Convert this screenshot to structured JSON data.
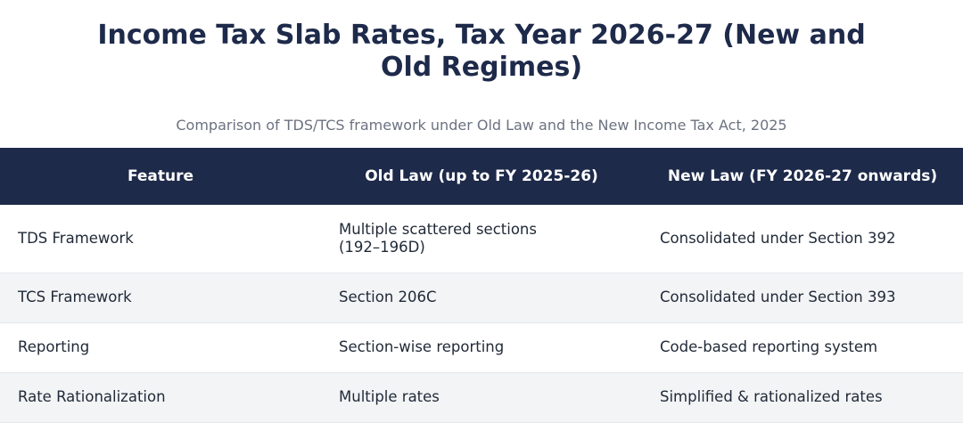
{
  "title": "Income Tax Slab Rates, Tax Year 2026-27 (New and Old Regimes)",
  "subtitle": "Comparison of TDS/TCS framework under Old Law and the New Income Tax Act, 2025",
  "table": {
    "headers": [
      "Feature",
      "Old Law (up to FY 2025-26)",
      "New Law (FY 2026-27 onwards)"
    ],
    "rows": [
      [
        "TDS Framework",
        "Multiple scattered sections (192–196D)",
        "Consolidated under Section 392"
      ],
      [
        "TCS Framework",
        "Section 206C",
        "Consolidated under Section 393"
      ],
      [
        "Reporting",
        "Section-wise reporting",
        "Code-based reporting system"
      ],
      [
        "Rate Rationalization",
        "Multiple rates",
        "Simplified & rationalized rates"
      ]
    ]
  },
  "colors": {
    "header_bg": "#1e2a4a",
    "title": "#1e2a4a",
    "stripe": "#f3f4f6"
  }
}
